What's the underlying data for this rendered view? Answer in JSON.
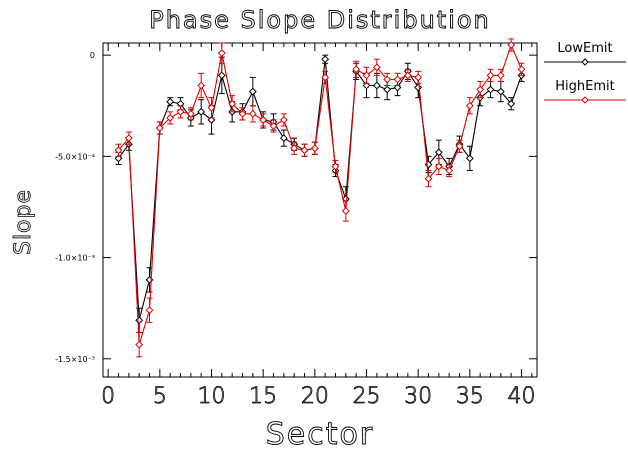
{
  "chart_data": {
    "type": "line",
    "title": "Phase Slope Distribution",
    "xlabel": "Sector",
    "ylabel": "Slope",
    "xlim": [
      -0.5,
      41.5
    ],
    "ylim": [
      -0.00159,
      6e-05
    ],
    "xticks": [
      0,
      5,
      10,
      15,
      20,
      25,
      30,
      35,
      40
    ],
    "xtick_labels": [
      "0",
      "5",
      "10",
      "15",
      "20",
      "25",
      "30",
      "35",
      "40"
    ],
    "yticks": [
      0,
      -0.0005,
      -0.001,
      -0.0015
    ],
    "ytick_labels": [
      "0",
      "-5.0×10⁻⁴",
      "-1.0×10⁻³",
      "-1.5×10⁻³"
    ],
    "legend_position": "right",
    "grid": false,
    "x": [
      1,
      2,
      3,
      4,
      5,
      6,
      7,
      8,
      9,
      10,
      11,
      12,
      13,
      14,
      15,
      16,
      17,
      18,
      19,
      20,
      21,
      22,
      23,
      24,
      25,
      26,
      27,
      28,
      29,
      30,
      31,
      32,
      33,
      34,
      35,
      36,
      37,
      38,
      39,
      40
    ],
    "series": [
      {
        "name": "LowEmit",
        "color": "#000000",
        "values": [
          -0.00051,
          -0.00044,
          -0.00131,
          -0.00111,
          -0.00036,
          -0.00023,
          -0.00024,
          -0.00031,
          -0.00028,
          -0.00032,
          -0.0001,
          -0.00028,
          -0.00028,
          -0.00018,
          -0.00032,
          -0.00033,
          -0.00041,
          -0.00044,
          -0.00047,
          -0.00046,
          -2e-05,
          -0.00057,
          -0.00071,
          -8e-05,
          -0.00015,
          -0.00015,
          -0.00017,
          -0.00016,
          -8e-05,
          -0.00016,
          -0.00054,
          -0.00048,
          -0.00055,
          -0.00044,
          -0.00051,
          -0.00021,
          -0.00017,
          -0.00018,
          -0.00024,
          -0.0001
        ],
        "errors": [
          3e-05,
          3e-05,
          6e-05,
          6e-05,
          3e-05,
          2e-05,
          3e-05,
          4e-05,
          6e-05,
          7e-05,
          9e-05,
          5e-05,
          4e-05,
          7e-05,
          4e-05,
          4e-05,
          4e-05,
          3e-05,
          3e-05,
          3e-05,
          2e-05,
          3e-05,
          6e-05,
          4e-05,
          6e-05,
          6e-05,
          5e-05,
          4e-05,
          4e-05,
          5e-05,
          4e-05,
          6e-05,
          4e-05,
          4e-05,
          6e-05,
          4e-05,
          4e-05,
          5e-05,
          3e-05,
          3e-05
        ]
      },
      {
        "name": "HighEmit",
        "color": "#e00000",
        "values": [
          -0.00047,
          -0.00041,
          -0.00143,
          -0.00126,
          -0.00036,
          -0.00031,
          -0.00028,
          -0.00029,
          -0.00015,
          -0.00026,
          1e-05,
          -0.00024,
          -0.00029,
          -0.00029,
          -0.00032,
          -0.00035,
          -0.00032,
          -0.00046,
          -0.00047,
          -0.00046,
          -0.00011,
          -0.00055,
          -0.00077,
          -7e-05,
          -0.0001,
          -6e-05,
          -0.00012,
          -0.00012,
          -0.0001,
          -0.00011,
          -0.00061,
          -0.00055,
          -0.00057,
          -0.00045,
          -0.00025,
          -0.00017,
          -0.0001,
          -0.0001,
          5e-05,
          -7e-05
        ],
        "errors": [
          3e-05,
          3e-05,
          6e-05,
          6e-05,
          3e-05,
          3e-05,
          3e-05,
          3e-05,
          6e-05,
          5e-05,
          5e-05,
          4e-05,
          3e-05,
          4e-05,
          3e-05,
          3e-05,
          3e-05,
          3e-05,
          3e-05,
          3e-05,
          3e-05,
          3e-05,
          5e-05,
          4e-05,
          4e-05,
          4e-05,
          3e-05,
          3e-05,
          3e-05,
          3e-05,
          4e-05,
          4e-05,
          3e-05,
          3e-05,
          4e-05,
          4e-05,
          3e-05,
          3e-05,
          3e-05,
          3e-05
        ]
      }
    ]
  }
}
